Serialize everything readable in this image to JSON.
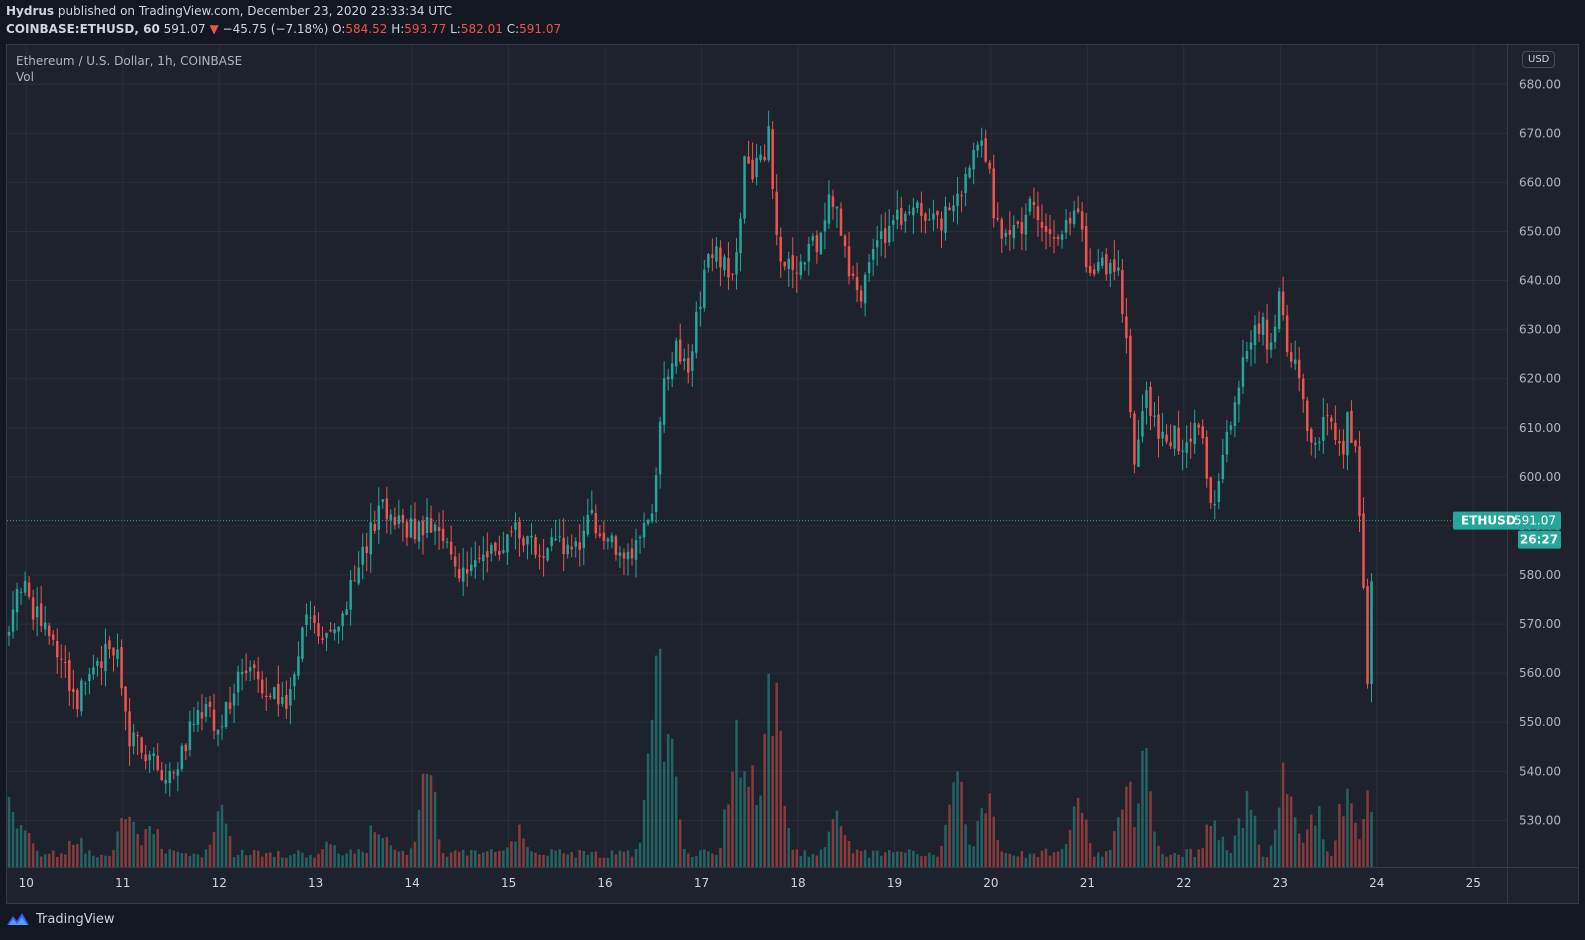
{
  "header": {
    "publisher": "Hydrus",
    "published_text": "published on TradingView.com, December 23, 2020 23:33:34 UTC",
    "symbol": "COINBASE:ETHUSD, 60",
    "last": "591.07",
    "change_arrow": "▼",
    "change": "−45.75 (−7.18%)",
    "open_label": "O:",
    "open": "584.52",
    "high_label": "H:",
    "high": "593.77",
    "low_label": "L:",
    "low": "582.01",
    "close_label": "C:",
    "close": "591.07"
  },
  "legend": {
    "title": "Ethereum / U.S. Dollar, 1h, COINBASE",
    "vol": "Vol"
  },
  "currency_button": "USD",
  "price_tag": {
    "label": "ETHUSD",
    "value": "591.07",
    "countdown": "26:27"
  },
  "footer": {
    "brand": "TradingView",
    "logo_icon": "tradingview-logo-icon"
  },
  "colors": {
    "background": "#131722",
    "panel": "#1e222d",
    "up": "#26a69a",
    "down": "#ef5350",
    "grid": "#2a2e39",
    "text": "#d1d4dc"
  },
  "chart_data": {
    "type": "candlestick",
    "interval": "1h",
    "x_tick_labels": [
      "10",
      "11",
      "12",
      "13",
      "14",
      "15",
      "16",
      "17",
      "18",
      "19",
      "20",
      "21",
      "22",
      "23",
      "24",
      "25"
    ],
    "y_tick_labels": [
      "530.00",
      "540.00",
      "550.00",
      "560.00",
      "570.00",
      "580.00",
      "590.00",
      "600.00",
      "610.00",
      "620.00",
      "630.00",
      "640.00",
      "650.00",
      "660.00",
      "670.00",
      "680.00"
    ],
    "y_ticks": [
      530,
      540,
      550,
      560,
      570,
      580,
      590,
      600,
      610,
      620,
      630,
      640,
      650,
      660,
      670,
      680
    ],
    "ylim": [
      520.5,
      688
    ],
    "xlim_days": [
      9.8,
      25.35
    ],
    "last_day": 23.98,
    "last_price": 591.07,
    "approx_close_path": [
      [
        9.8,
        568
      ],
      [
        9.95,
        579
      ],
      [
        10.1,
        572
      ],
      [
        10.25,
        568
      ],
      [
        10.4,
        560
      ],
      [
        10.5,
        554
      ],
      [
        10.6,
        557
      ],
      [
        10.75,
        562
      ],
      [
        10.85,
        566
      ],
      [
        10.95,
        563
      ],
      [
        11.05,
        548
      ],
      [
        11.2,
        544
      ],
      [
        11.35,
        541
      ],
      [
        11.45,
        540
      ],
      [
        11.6,
        543
      ],
      [
        11.7,
        548
      ],
      [
        11.8,
        553
      ],
      [
        11.9,
        551
      ],
      [
        12.0,
        549
      ],
      [
        12.1,
        553
      ],
      [
        12.2,
        559
      ],
      [
        12.3,
        560
      ],
      [
        12.45,
        558
      ],
      [
        12.55,
        556
      ],
      [
        12.7,
        555
      ],
      [
        12.8,
        563
      ],
      [
        12.9,
        570
      ],
      [
        13.0,
        570
      ],
      [
        13.1,
        567
      ],
      [
        13.2,
        568
      ],
      [
        13.3,
        572
      ],
      [
        13.45,
        583
      ],
      [
        13.6,
        590
      ],
      [
        13.7,
        594
      ],
      [
        13.85,
        591
      ],
      [
        14.0,
        589
      ],
      [
        14.15,
        591
      ],
      [
        14.3,
        587
      ],
      [
        14.45,
        584
      ],
      [
        14.5,
        579
      ],
      [
        14.6,
        580
      ],
      [
        14.75,
        584
      ],
      [
        14.9,
        586
      ],
      [
        15.0,
        588
      ],
      [
        15.1,
        590
      ],
      [
        15.2,
        587
      ],
      [
        15.3,
        584
      ],
      [
        15.45,
        586
      ],
      [
        15.6,
        585
      ],
      [
        15.75,
        587
      ],
      [
        15.85,
        591
      ],
      [
        16.0,
        589
      ],
      [
        16.1,
        586
      ],
      [
        16.2,
        584
      ],
      [
        16.3,
        585
      ],
      [
        16.4,
        588
      ],
      [
        16.5,
        594
      ],
      [
        16.55,
        605
      ],
      [
        16.6,
        617
      ],
      [
        16.65,
        622
      ],
      [
        16.75,
        626
      ],
      [
        16.85,
        622
      ],
      [
        16.95,
        632
      ],
      [
        17.05,
        644
      ],
      [
        17.2,
        645
      ],
      [
        17.3,
        642
      ],
      [
        17.4,
        650
      ],
      [
        17.45,
        666
      ],
      [
        17.55,
        662
      ],
      [
        17.65,
        665
      ],
      [
        17.7,
        672
      ],
      [
        17.75,
        652
      ],
      [
        17.85,
        642
      ],
      [
        17.95,
        643
      ],
      [
        18.1,
        645
      ],
      [
        18.2,
        648
      ],
      [
        18.35,
        658
      ],
      [
        18.45,
        650
      ],
      [
        18.55,
        640
      ],
      [
        18.65,
        638
      ],
      [
        18.75,
        643
      ],
      [
        18.85,
        648
      ],
      [
        18.95,
        649
      ],
      [
        19.05,
        653
      ],
      [
        19.15,
        656
      ],
      [
        19.3,
        652
      ],
      [
        19.45,
        651
      ],
      [
        19.6,
        656
      ],
      [
        19.7,
        660
      ],
      [
        19.8,
        665
      ],
      [
        19.9,
        668
      ],
      [
        20.0,
        660
      ],
      [
        20.05,
        651
      ],
      [
        20.15,
        648
      ],
      [
        20.3,
        650
      ],
      [
        20.4,
        655
      ],
      [
        20.5,
        653
      ],
      [
        20.6,
        649
      ],
      [
        20.75,
        650
      ],
      [
        20.85,
        655
      ],
      [
        20.95,
        649
      ],
      [
        21.0,
        638
      ],
      [
        21.1,
        642
      ],
      [
        21.2,
        643
      ],
      [
        21.3,
        644
      ],
      [
        21.4,
        630
      ],
      [
        21.45,
        610
      ],
      [
        21.5,
        603
      ],
      [
        21.6,
        618
      ],
      [
        21.7,
        612
      ],
      [
        21.8,
        606
      ],
      [
        21.9,
        610
      ],
      [
        22.0,
        604
      ],
      [
        22.1,
        611
      ],
      [
        22.2,
        606
      ],
      [
        22.3,
        594
      ],
      [
        22.4,
        604
      ],
      [
        22.5,
        612
      ],
      [
        22.6,
        622
      ],
      [
        22.7,
        628
      ],
      [
        22.8,
        632
      ],
      [
        22.9,
        625
      ],
      [
        23.0,
        637
      ],
      [
        23.05,
        628
      ],
      [
        23.15,
        623
      ],
      [
        23.2,
        618
      ],
      [
        23.3,
        610
      ],
      [
        23.4,
        605
      ],
      [
        23.45,
        612
      ],
      [
        23.55,
        609
      ],
      [
        23.65,
        606
      ],
      [
        23.7,
        612
      ],
      [
        23.78,
        604
      ],
      [
        23.85,
        585
      ],
      [
        23.9,
        554
      ],
      [
        23.95,
        582
      ],
      [
        23.98,
        591.07
      ]
    ],
    "volume_unit_note": "",
    "volume_profile_peaks": [
      [
        9.85,
        0.3
      ],
      [
        10.0,
        0.18
      ],
      [
        10.5,
        0.16
      ],
      [
        11.05,
        0.3
      ],
      [
        11.3,
        0.2
      ],
      [
        12.0,
        0.3
      ],
      [
        13.15,
        0.15
      ],
      [
        13.65,
        0.24
      ],
      [
        14.15,
        0.46
      ],
      [
        15.1,
        0.18
      ],
      [
        16.55,
        0.98
      ],
      [
        16.65,
        0.68
      ],
      [
        17.35,
        0.58
      ],
      [
        17.5,
        0.54
      ],
      [
        17.75,
        0.9
      ],
      [
        18.4,
        0.3
      ],
      [
        19.65,
        0.42
      ],
      [
        19.95,
        0.32
      ],
      [
        20.9,
        0.32
      ],
      [
        21.4,
        0.45
      ],
      [
        21.6,
        0.47
      ],
      [
        22.3,
        0.24
      ],
      [
        22.65,
        0.32
      ],
      [
        23.05,
        0.5
      ],
      [
        23.35,
        0.3
      ],
      [
        23.7,
        0.43
      ],
      [
        23.9,
        0.3
      ]
    ]
  }
}
